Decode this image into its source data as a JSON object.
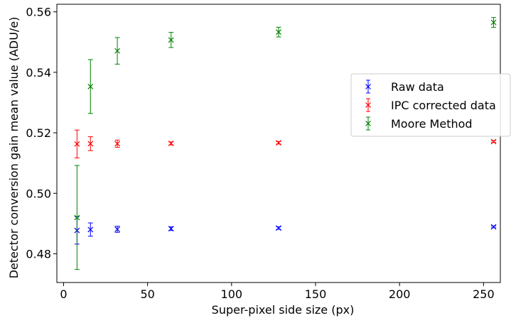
{
  "chart_data": {
    "type": "scatter",
    "xlabel": "Super-pixel side size (px)",
    "ylabel": "Detector conversion gain mean value (ADU/e)",
    "xlim": [
      -4,
      260
    ],
    "ylim": [
      0.4705,
      0.5625
    ],
    "xticks": [
      0,
      50,
      100,
      150,
      200,
      250
    ],
    "yticks": [
      0.48,
      0.5,
      0.52,
      0.54,
      0.56
    ],
    "ytick_labels": [
      "0.48",
      "0.50",
      "0.52",
      "0.54",
      "0.56"
    ],
    "grid": false,
    "legend_position": "right",
    "marker": "x with error bars",
    "series": [
      {
        "name": "Raw data",
        "color": "#0000ff",
        "x": [
          8,
          16,
          32,
          64,
          128,
          256
        ],
        "y": [
          0.4877,
          0.488,
          0.4881,
          0.4883,
          0.4885,
          0.4889
        ],
        "err": [
          0.0045,
          0.0022,
          0.001,
          0.0006,
          0.0004,
          0.0003
        ]
      },
      {
        "name": "IPC corrected data",
        "color": "#ff0000",
        "x": [
          8,
          16,
          32,
          64,
          128,
          256
        ],
        "y": [
          0.5163,
          0.5164,
          0.5164,
          0.5165,
          0.5167,
          0.5171
        ],
        "err": [
          0.0046,
          0.0023,
          0.0012,
          0.0005,
          0.0004,
          0.0003
        ]
      },
      {
        "name": "Moore Method",
        "color": "#008000",
        "x": [
          8,
          16,
          32,
          64,
          128,
          256
        ],
        "y": [
          0.492,
          0.5353,
          0.5471,
          0.5507,
          0.5533,
          0.5565
        ],
        "err": [
          0.0172,
          0.0089,
          0.0044,
          0.0025,
          0.0016,
          0.0016
        ]
      }
    ]
  }
}
